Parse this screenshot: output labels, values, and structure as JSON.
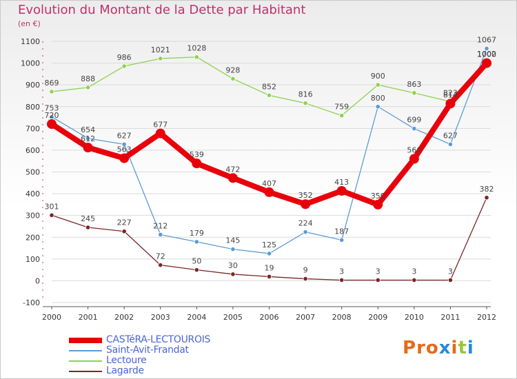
{
  "header": {
    "title": "Evolution du Montant de la Dette par Habitant",
    "unit": "(en €)"
  },
  "logo": {
    "text": "Proxiti",
    "colors": [
      "#e46a1a",
      "#e46a1a",
      "#e46a1a",
      "#2b8ad6",
      "#e46a1a",
      "#9bc53d",
      "#2b8ad6"
    ]
  },
  "chart_data": {
    "type": "line",
    "title": "Evolution du Montant de la Dette par Habitant",
    "subtitle": "(en €)",
    "xlabel": "",
    "ylabel": "",
    "x": [
      "2000",
      "2001",
      "2002",
      "2003",
      "2004",
      "2005",
      "2006",
      "2007",
      "2008",
      "2009",
      "2010",
      "2011",
      "2012"
    ],
    "ylim": [
      -100,
      1100
    ],
    "yticks": [
      -100,
      0,
      100,
      200,
      300,
      400,
      500,
      600,
      700,
      800,
      900,
      1000,
      1100
    ],
    "grid": "horizontal",
    "legend_position": "bottom-left",
    "series": [
      {
        "name": "Saint-Avit-Frandat",
        "color": "#5b9bd5",
        "values": [
          753,
          654,
          627,
          212,
          179,
          145,
          125,
          224,
          187,
          800,
          699,
          627,
          1067
        ],
        "labels": [
          "753",
          "654",
          "627",
          "212",
          "179",
          "145",
          "125",
          "224",
          "187",
          "800",
          "699",
          "627",
          "1067"
        ]
      },
      {
        "name": "Lectoure",
        "color": "#8fd14f",
        "values": [
          869,
          888,
          986,
          1021,
          1028,
          928,
          852,
          816,
          759,
          900,
          863,
          823,
          1002
        ],
        "labels": [
          "869",
          "888",
          "986",
          "1021",
          "1028",
          "928",
          "852",
          "816",
          "759",
          "900",
          "863",
          "823",
          "1002"
        ]
      },
      {
        "name": "Lagarde",
        "color": "#7a2525",
        "values": [
          301,
          245,
          227,
          72,
          50,
          30,
          19,
          9,
          3,
          3,
          3,
          3,
          382
        ],
        "labels": [
          "301",
          "245",
          "227",
          "72",
          "50",
          "30",
          "19",
          "9",
          "3",
          "3",
          "3",
          "3",
          "382"
        ]
      },
      {
        "name": "CASTéRA-LECTOUROIS",
        "color": "#e8000b",
        "values": [
          720,
          612,
          563,
          677,
          539,
          472,
          407,
          352,
          413,
          350,
          560,
          814,
          1000
        ],
        "labels": [
          "720",
          "612",
          "563",
          "677",
          "539",
          "472",
          "407",
          "352",
          "413",
          "350",
          "560",
          "814",
          "1000"
        ]
      }
    ],
    "legend": [
      {
        "name": "CASTéRA-LECTOUROIS",
        "color": "#e8000b"
      },
      {
        "name": "Saint-Avit-Frandat",
        "color": "#5b9bd5"
      },
      {
        "name": "Lectoure",
        "color": "#8fd14f"
      },
      {
        "name": "Lagarde",
        "color": "#7a2525"
      }
    ]
  }
}
